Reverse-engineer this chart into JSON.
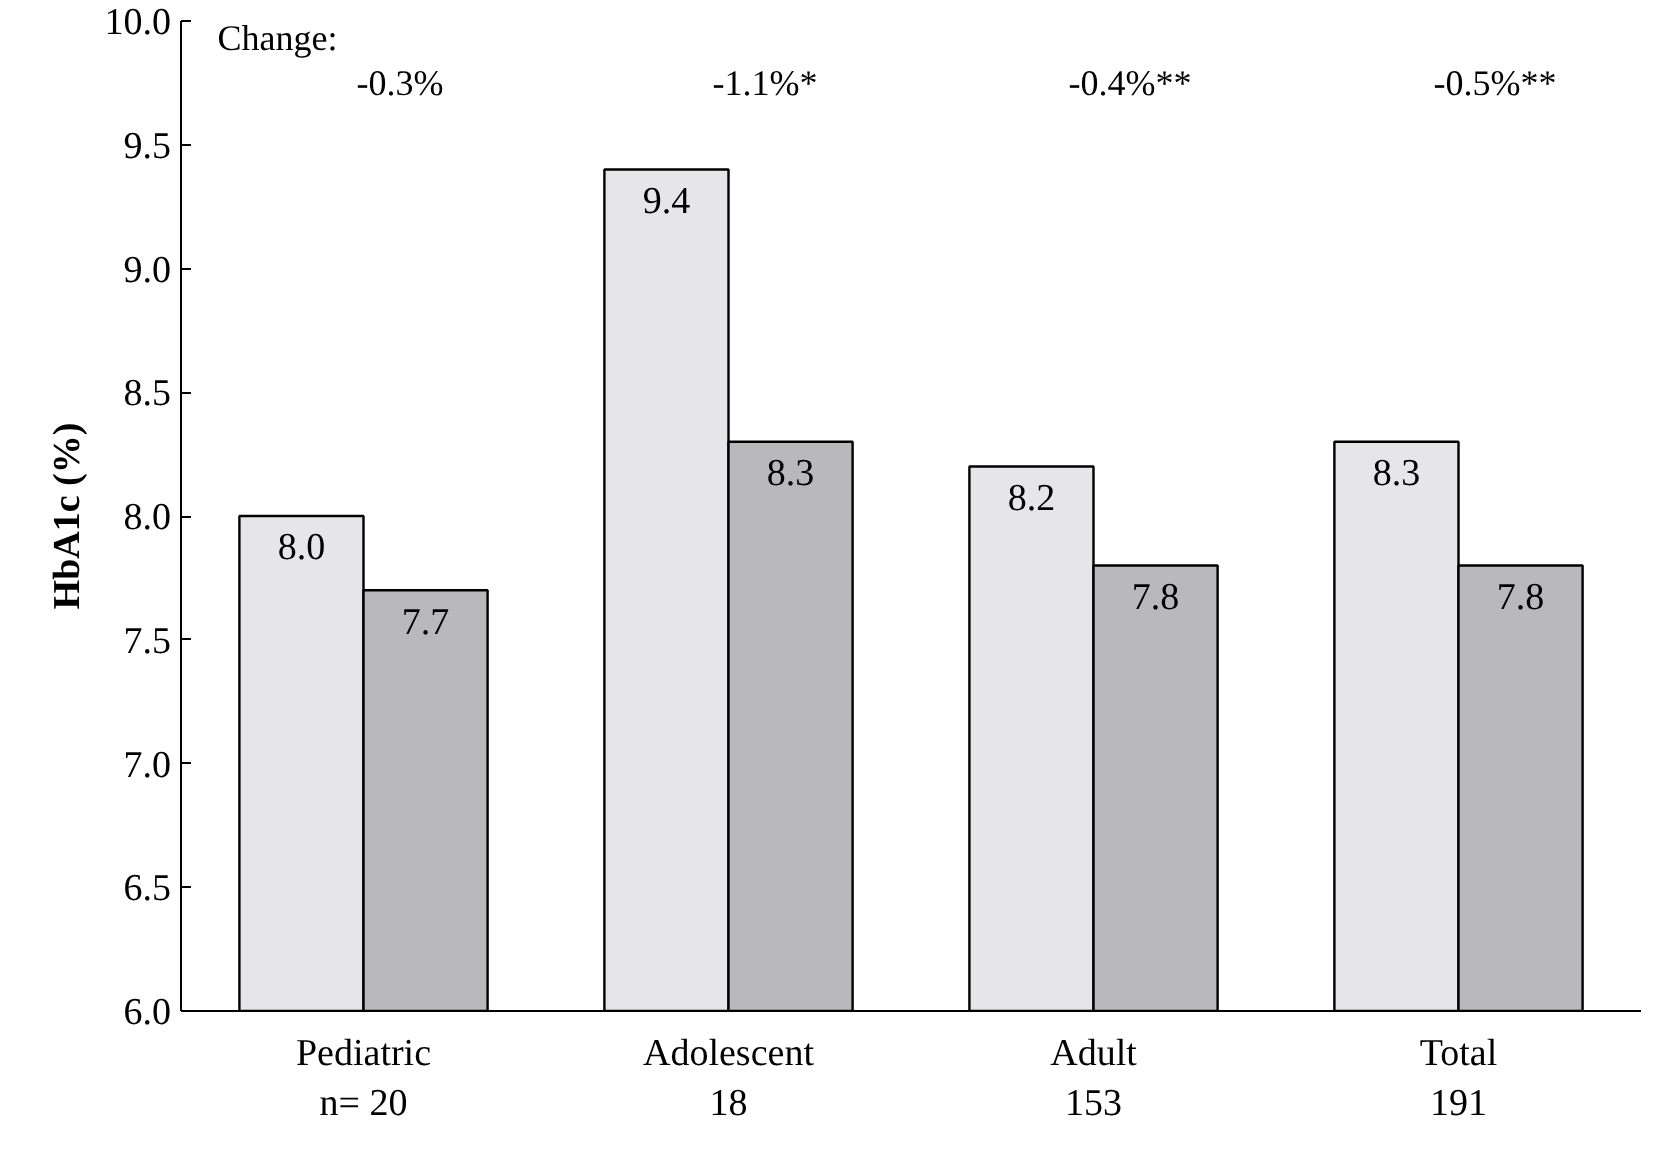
{
  "chart_data": {
    "type": "bar",
    "ylabel": "HbA1c (%)",
    "categories": [
      "Pediatric\nn= 20",
      "Adolescent\n18",
      "Adult\n153",
      "Total\n191"
    ],
    "series": [
      {
        "color": "#e6e6e8",
        "values": [
          8.0,
          9.4,
          8.2,
          8.3
        ],
        "value_labels": [
          "8.0",
          "9.4",
          "8.2",
          "8.3"
        ]
      },
      {
        "color": "#b9b9bb",
        "values": [
          7.7,
          8.3,
          7.8,
          7.8
        ],
        "value_labels": [
          "7.7",
          "8.3",
          "7.8",
          "7.8"
        ]
      }
    ],
    "ylim": [
      6.0,
      10.0
    ],
    "yticks": [
      {
        "value": 6.0,
        "label": "6.0"
      },
      {
        "value": 6.5,
        "label": "6.5"
      },
      {
        "value": 7.0,
        "label": "7.0"
      },
      {
        "value": 7.5,
        "label": "7.5"
      },
      {
        "value": 8.0,
        "label": "8.0"
      },
      {
        "value": 8.5,
        "label": "8.5"
      },
      {
        "value": 9.0,
        "label": "9.0"
      },
      {
        "value": 9.5,
        "label": "9.5"
      },
      {
        "value": 10.0,
        "label": "10.0"
      }
    ],
    "annotations": [
      "Change:",
      "-0.3%",
      "-1.1%*",
      "-0.4%**",
      "-0.5%**"
    ]
  }
}
